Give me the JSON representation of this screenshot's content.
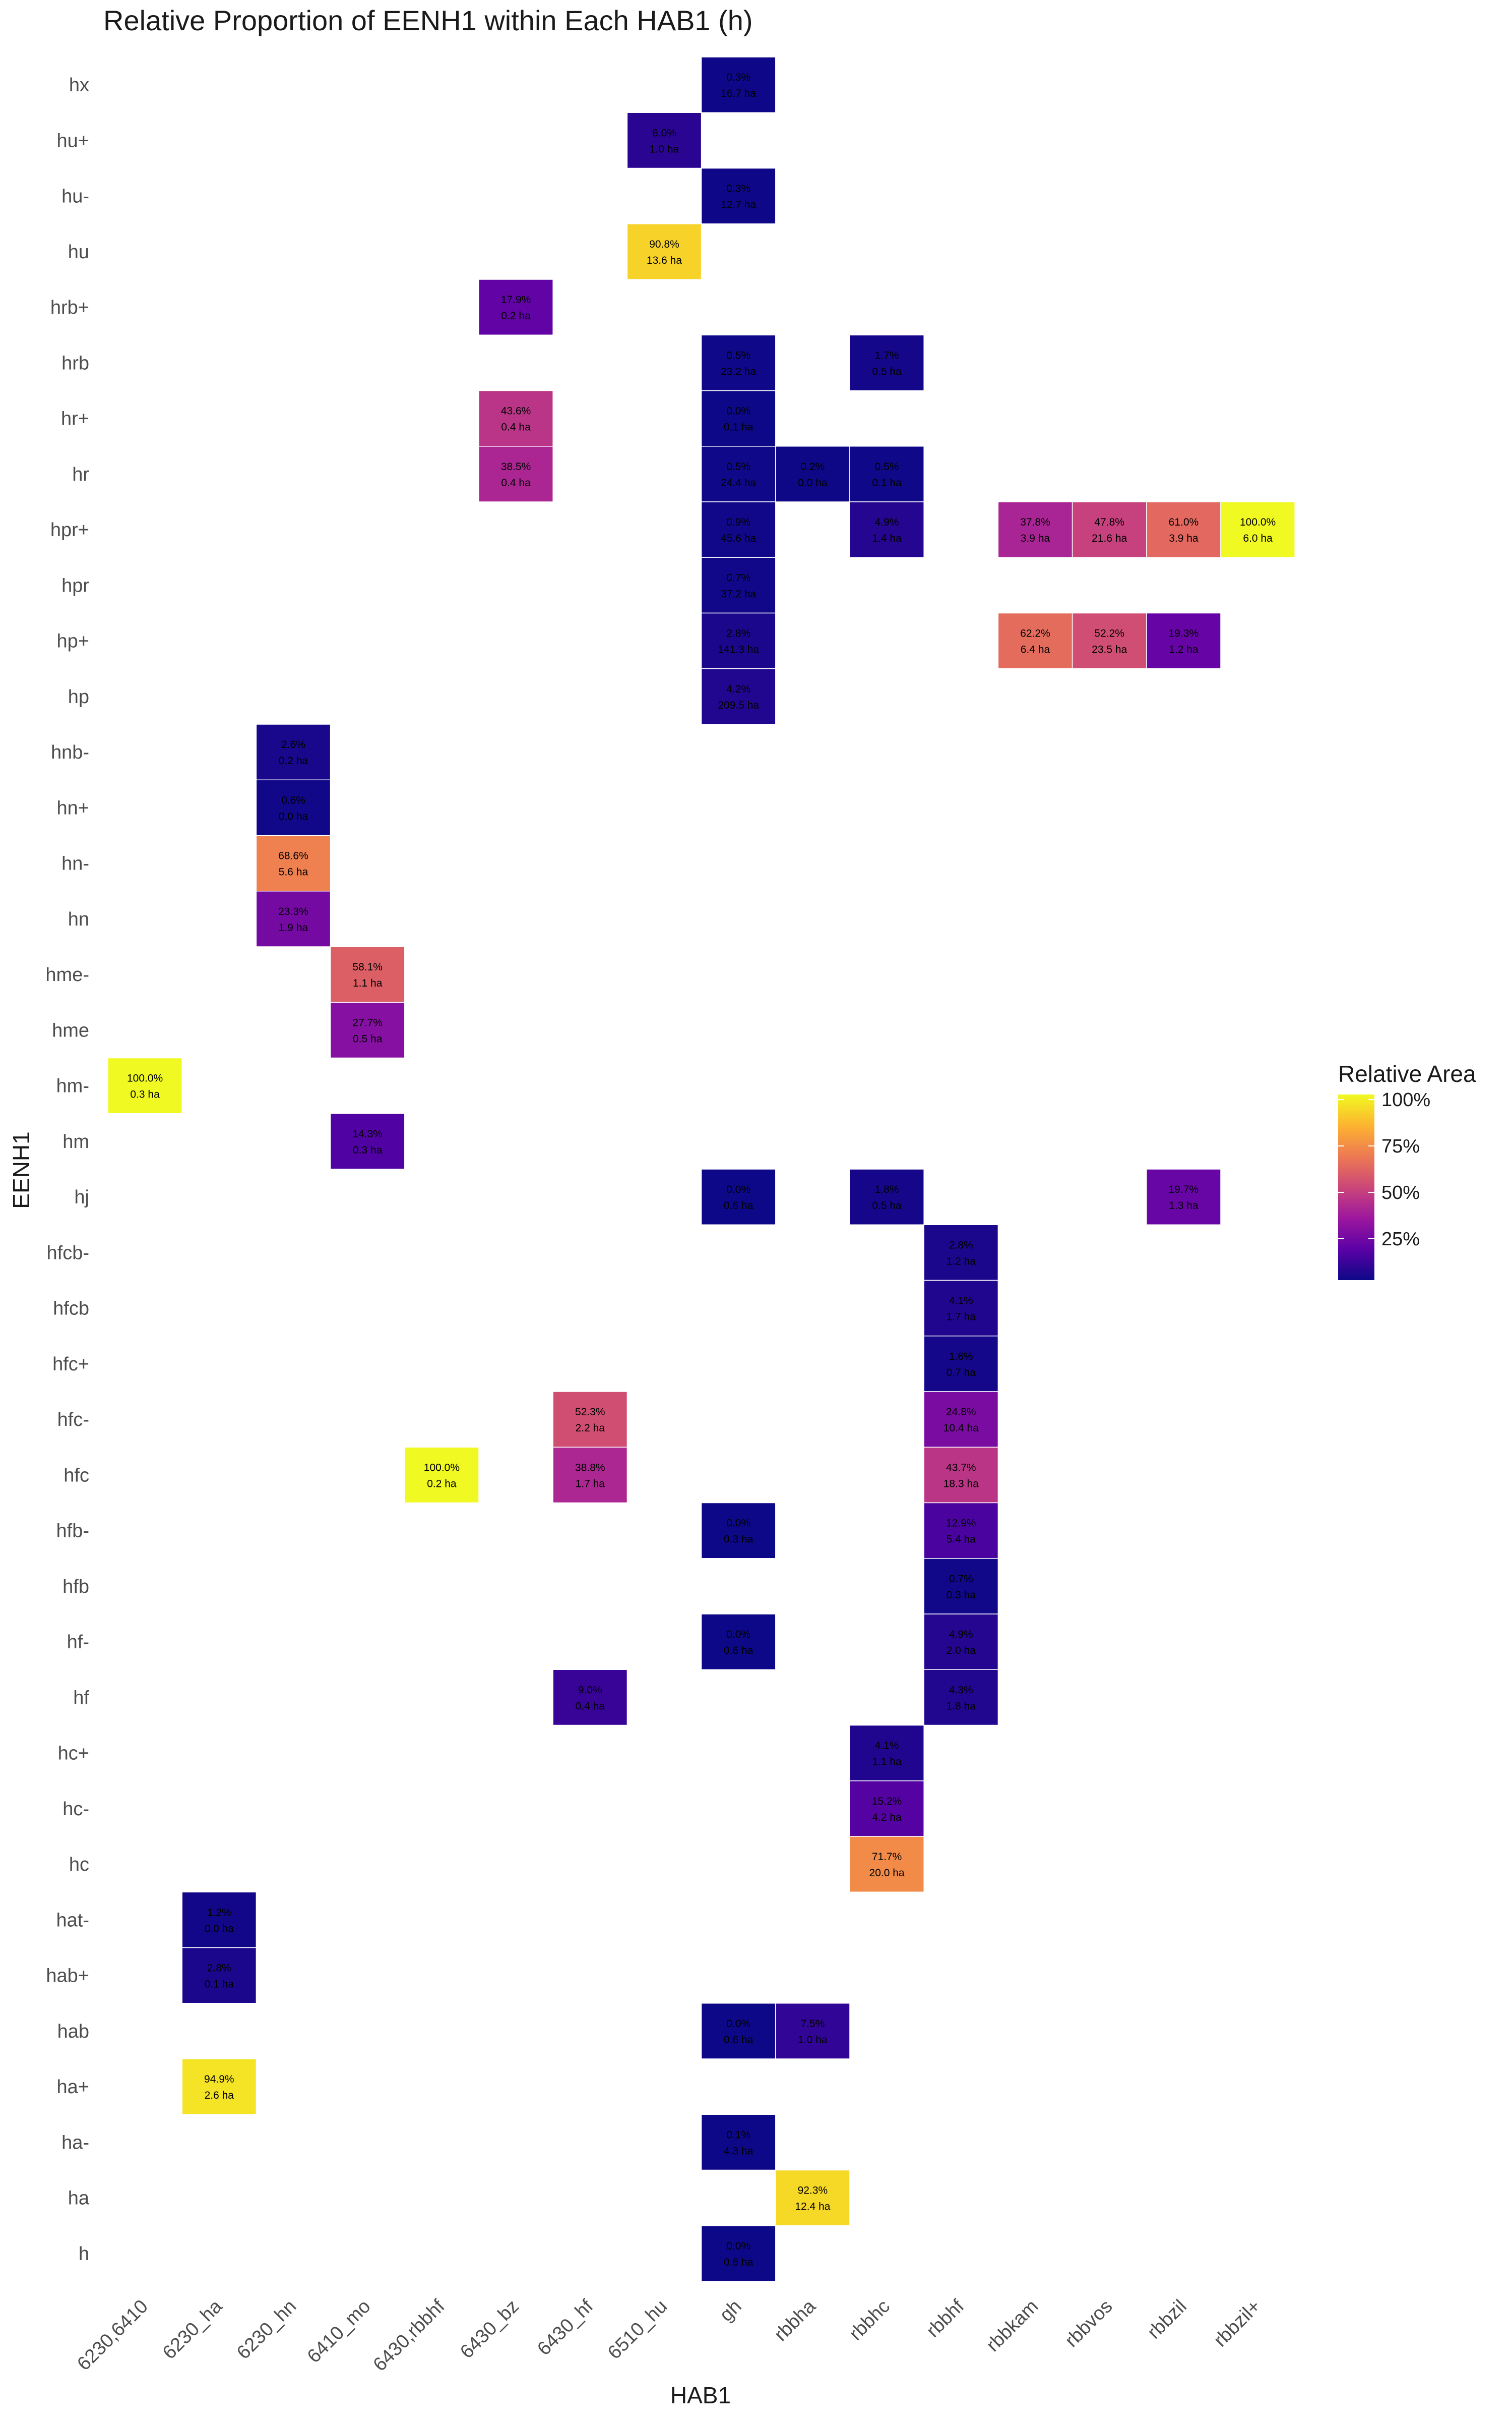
{
  "chart_data": {
    "type": "heatmap",
    "title": "Relative Proportion of EENH1 within Each HAB1 (h)",
    "xlabel": "HAB1",
    "ylabel": "EENH1",
    "x_categories": [
      "6230,6410",
      "6230_ha",
      "6230_hn",
      "6410_mo",
      "6430,rbbhf",
      "6430_bz",
      "6430_hf",
      "6510_hu",
      "gh",
      "rbbha",
      "rbbhc",
      "rbbhf",
      "rbbkam",
      "rbbvos",
      "rbbzil",
      "rbbzil+"
    ],
    "y_categories": [
      "hx",
      "hu+",
      "hu-",
      "hu",
      "hrb+",
      "hrb",
      "hr+",
      "hr",
      "hpr+",
      "hpr",
      "hp+",
      "hp",
      "hnb-",
      "hn+",
      "hn-",
      "hn",
      "hme-",
      "hme",
      "hm-",
      "hm",
      "hj",
      "hfcb-",
      "hfcb",
      "hfc+",
      "hfc-",
      "hfc",
      "hfb-",
      "hfb",
      "hf-",
      "hf",
      "hc+",
      "hc-",
      "hc",
      "hat-",
      "hab+",
      "hab",
      "ha+",
      "ha-",
      "ha",
      "h"
    ],
    "legend": {
      "title": "Relative Area",
      "position": "right",
      "ticks": [
        "100%",
        "75%",
        "50%",
        "25%"
      ],
      "tick_values": [
        100,
        75,
        50,
        25
      ],
      "range": [
        0,
        100
      ],
      "palette": "plasma",
      "colors": [
        "#0d0887",
        "#5c01a6",
        "#9c179e",
        "#cc4778",
        "#ed7953",
        "#fdb42f",
        "#f0f921"
      ]
    },
    "cells": [
      {
        "x": "gh",
        "y": "hx",
        "pct": 0.3,
        "pct_label": "0.3%",
        "area_label": "16.7 ha"
      },
      {
        "x": "6510_hu",
        "y": "hu+",
        "pct": 6.0,
        "pct_label": "6.0%",
        "area_label": "1.0 ha"
      },
      {
        "x": "gh",
        "y": "hu-",
        "pct": 0.3,
        "pct_label": "0.3%",
        "area_label": "12.7 ha"
      },
      {
        "x": "6510_hu",
        "y": "hu",
        "pct": 90.8,
        "pct_label": "90.8%",
        "area_label": "13.6 ha"
      },
      {
        "x": "6430_bz",
        "y": "hrb+",
        "pct": 17.9,
        "pct_label": "17.9%",
        "area_label": "0.2 ha"
      },
      {
        "x": "gh",
        "y": "hrb",
        "pct": 0.5,
        "pct_label": "0.5%",
        "area_label": "23.2 ha"
      },
      {
        "x": "rbbhc",
        "y": "hrb",
        "pct": 1.7,
        "pct_label": "1.7%",
        "area_label": "0.5 ha"
      },
      {
        "x": "6430_bz",
        "y": "hr+",
        "pct": 43.6,
        "pct_label": "43.6%",
        "area_label": "0.4 ha"
      },
      {
        "x": "gh",
        "y": "hr+",
        "pct": 0.0,
        "pct_label": "0.0%",
        "area_label": "0.1 ha"
      },
      {
        "x": "6430_bz",
        "y": "hr",
        "pct": 38.5,
        "pct_label": "38.5%",
        "area_label": "0.4 ha"
      },
      {
        "x": "gh",
        "y": "hr",
        "pct": 0.5,
        "pct_label": "0.5%",
        "area_label": "24.4 ha"
      },
      {
        "x": "rbbha",
        "y": "hr",
        "pct": 0.2,
        "pct_label": "0.2%",
        "area_label": "0.0 ha"
      },
      {
        "x": "rbbhc",
        "y": "hr",
        "pct": 0.5,
        "pct_label": "0.5%",
        "area_label": "0.1 ha"
      },
      {
        "x": "gh",
        "y": "hpr+",
        "pct": 0.9,
        "pct_label": "0.9%",
        "area_label": "45.6 ha"
      },
      {
        "x": "rbbhc",
        "y": "hpr+",
        "pct": 4.9,
        "pct_label": "4.9%",
        "area_label": "1.4 ha"
      },
      {
        "x": "rbbkam",
        "y": "hpr+",
        "pct": 37.8,
        "pct_label": "37.8%",
        "area_label": "3.9 ha"
      },
      {
        "x": "rbbvos",
        "y": "hpr+",
        "pct": 47.8,
        "pct_label": "47.8%",
        "area_label": "21.6 ha"
      },
      {
        "x": "rbbzil",
        "y": "hpr+",
        "pct": 61.0,
        "pct_label": "61.0%",
        "area_label": "3.9 ha"
      },
      {
        "x": "rbbzil+",
        "y": "hpr+",
        "pct": 100.0,
        "pct_label": "100.0%",
        "area_label": "6.0 ha"
      },
      {
        "x": "gh",
        "y": "hpr",
        "pct": 0.7,
        "pct_label": "0.7%",
        "area_label": "37.2 ha"
      },
      {
        "x": "gh",
        "y": "hp+",
        "pct": 2.8,
        "pct_label": "2.8%",
        "area_label": "141.3 ha"
      },
      {
        "x": "rbbkam",
        "y": "hp+",
        "pct": 62.2,
        "pct_label": "62.2%",
        "area_label": "6.4 ha"
      },
      {
        "x": "rbbvos",
        "y": "hp+",
        "pct": 52.2,
        "pct_label": "52.2%",
        "area_label": "23.5 ha"
      },
      {
        "x": "rbbzil",
        "y": "hp+",
        "pct": 19.3,
        "pct_label": "19.3%",
        "area_label": "1.2 ha"
      },
      {
        "x": "gh",
        "y": "hp",
        "pct": 4.2,
        "pct_label": "4.2%",
        "area_label": "209.5 ha"
      },
      {
        "x": "6230_hn",
        "y": "hnb-",
        "pct": 2.6,
        "pct_label": "2.6%",
        "area_label": "0.2 ha"
      },
      {
        "x": "6230_hn",
        "y": "hn+",
        "pct": 0.6,
        "pct_label": "0.6%",
        "area_label": "0.0 ha"
      },
      {
        "x": "6230_hn",
        "y": "hn-",
        "pct": 68.6,
        "pct_label": "68.6%",
        "area_label": "5.6 ha"
      },
      {
        "x": "6230_hn",
        "y": "hn",
        "pct": 23.3,
        "pct_label": "23.3%",
        "area_label": "1.9 ha"
      },
      {
        "x": "6410_mo",
        "y": "hme-",
        "pct": 58.1,
        "pct_label": "58.1%",
        "area_label": "1.1 ha"
      },
      {
        "x": "6410_mo",
        "y": "hme",
        "pct": 27.7,
        "pct_label": "27.7%",
        "area_label": "0.5 ha"
      },
      {
        "x": "6230,6410",
        "y": "hm-",
        "pct": 100.0,
        "pct_label": "100.0%",
        "area_label": "0.3 ha"
      },
      {
        "x": "6410_mo",
        "y": "hm",
        "pct": 14.3,
        "pct_label": "14.3%",
        "area_label": "0.3 ha"
      },
      {
        "x": "gh",
        "y": "hj",
        "pct": 0.0,
        "pct_label": "0.0%",
        "area_label": "0.6 ha"
      },
      {
        "x": "rbbhc",
        "y": "hj",
        "pct": 1.8,
        "pct_label": "1.8%",
        "area_label": "0.5 ha"
      },
      {
        "x": "rbbzil",
        "y": "hj",
        "pct": 19.7,
        "pct_label": "19.7%",
        "area_label": "1.3 ha"
      },
      {
        "x": "rbbhf",
        "y": "hfcb-",
        "pct": 2.8,
        "pct_label": "2.8%",
        "area_label": "1.2 ha"
      },
      {
        "x": "rbbhf",
        "y": "hfcb",
        "pct": 4.1,
        "pct_label": "4.1%",
        "area_label": "1.7 ha"
      },
      {
        "x": "rbbhf",
        "y": "hfc+",
        "pct": 1.6,
        "pct_label": "1.6%",
        "area_label": "0.7 ha"
      },
      {
        "x": "6430_hf",
        "y": "hfc-",
        "pct": 52.3,
        "pct_label": "52.3%",
        "area_label": "2.2 ha"
      },
      {
        "x": "rbbhf",
        "y": "hfc-",
        "pct": 24.8,
        "pct_label": "24.8%",
        "area_label": "10.4 ha"
      },
      {
        "x": "6430,rbbhf",
        "y": "hfc",
        "pct": 100.0,
        "pct_label": "100.0%",
        "area_label": "0.2 ha"
      },
      {
        "x": "6430_hf",
        "y": "hfc",
        "pct": 38.8,
        "pct_label": "38.8%",
        "area_label": "1.7 ha"
      },
      {
        "x": "rbbhf",
        "y": "hfc",
        "pct": 43.7,
        "pct_label": "43.7%",
        "area_label": "18.3 ha"
      },
      {
        "x": "gh",
        "y": "hfb-",
        "pct": 0.0,
        "pct_label": "0.0%",
        "area_label": "0.3 ha"
      },
      {
        "x": "rbbhf",
        "y": "hfb-",
        "pct": 12.9,
        "pct_label": "12.9%",
        "area_label": "5.4 ha"
      },
      {
        "x": "rbbhf",
        "y": "hfb",
        "pct": 0.7,
        "pct_label": "0.7%",
        "area_label": "0.3 ha"
      },
      {
        "x": "gh",
        "y": "hf-",
        "pct": 0.0,
        "pct_label": "0.0%",
        "area_label": "0.6 ha"
      },
      {
        "x": "rbbhf",
        "y": "hf-",
        "pct": 4.9,
        "pct_label": "4.9%",
        "area_label": "2.0 ha"
      },
      {
        "x": "6430_hf",
        "y": "hf",
        "pct": 9.0,
        "pct_label": "9.0%",
        "area_label": "0.4 ha"
      },
      {
        "x": "rbbhf",
        "y": "hf",
        "pct": 4.3,
        "pct_label": "4.3%",
        "area_label": "1.8 ha"
      },
      {
        "x": "rbbhc",
        "y": "hc+",
        "pct": 4.1,
        "pct_label": "4.1%",
        "area_label": "1.1 ha"
      },
      {
        "x": "rbbhc",
        "y": "hc-",
        "pct": 15.2,
        "pct_label": "15.2%",
        "area_label": "4.2 ha"
      },
      {
        "x": "rbbhc",
        "y": "hc",
        "pct": 71.7,
        "pct_label": "71.7%",
        "area_label": "20.0 ha"
      },
      {
        "x": "6230_ha",
        "y": "hat-",
        "pct": 1.2,
        "pct_label": "1.2%",
        "area_label": "0.0 ha"
      },
      {
        "x": "6230_ha",
        "y": "hab+",
        "pct": 2.8,
        "pct_label": "2.8%",
        "area_label": "0.1 ha"
      },
      {
        "x": "gh",
        "y": "hab",
        "pct": 0.0,
        "pct_label": "0.0%",
        "area_label": "0.6 ha"
      },
      {
        "x": "rbbha",
        "y": "hab",
        "pct": 7.5,
        "pct_label": "7.5%",
        "area_label": "1.0 ha"
      },
      {
        "x": "6230_ha",
        "y": "ha+",
        "pct": 94.9,
        "pct_label": "94.9%",
        "area_label": "2.6 ha"
      },
      {
        "x": "gh",
        "y": "ha-",
        "pct": 0.1,
        "pct_label": "0.1%",
        "area_label": "4.3 ha"
      },
      {
        "x": "rbbha",
        "y": "ha",
        "pct": 92.3,
        "pct_label": "92.3%",
        "area_label": "12.4 ha"
      },
      {
        "x": "gh",
        "y": "h",
        "pct": 0.0,
        "pct_label": "0.0%",
        "area_label": "0.6 ha"
      }
    ]
  }
}
